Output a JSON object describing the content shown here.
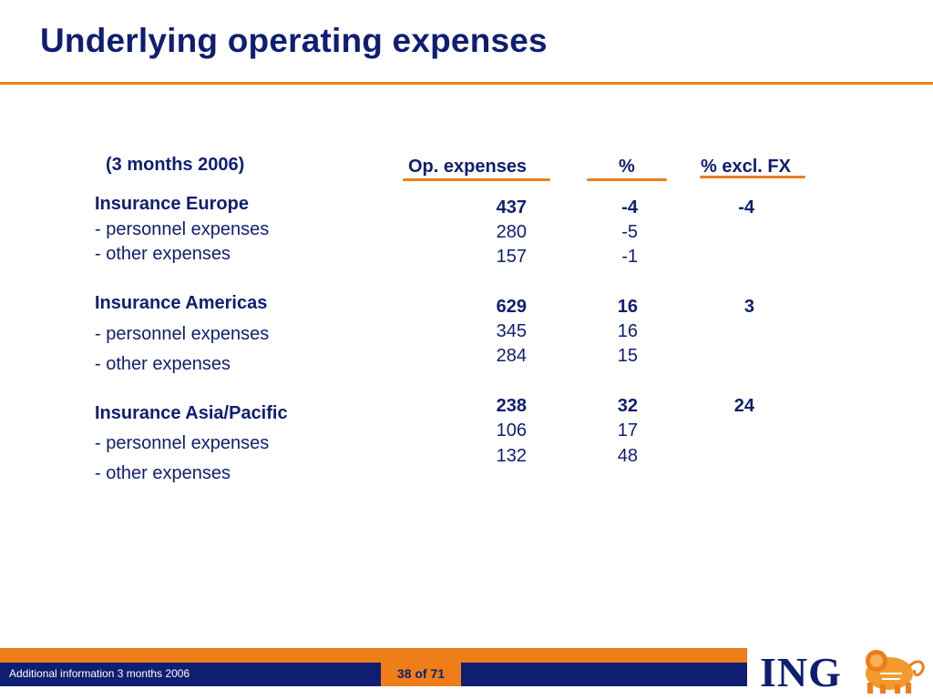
{
  "title": "Underlying operating expenses",
  "period_label": "(3 months 2006)",
  "columns": [
    "Op. expenses",
    "%",
    "% excl. FX"
  ],
  "sections": [
    {
      "name": "Insurance Europe",
      "total": [
        "437",
        "-4",
        "-4"
      ],
      "rows": [
        {
          "label": "-  personnel expenses",
          "values": [
            "280",
            "-5",
            ""
          ]
        },
        {
          "label": "-  other expenses",
          "values": [
            "157",
            "-1",
            ""
          ]
        }
      ]
    },
    {
      "name": "Insurance Americas",
      "total": [
        "629",
        "16",
        "3"
      ],
      "rows": [
        {
          "label": "-  personnel expenses",
          "values": [
            "345",
            "16",
            ""
          ]
        },
        {
          "label": "-  other expenses",
          "values": [
            "284",
            "15",
            ""
          ]
        }
      ]
    },
    {
      "name": "Insurance Asia/Pacific",
      "total": [
        "238",
        "32",
        "24"
      ],
      "rows": [
        {
          "label": "-  personnel expenses",
          "values": [
            "106",
            "17",
            ""
          ]
        },
        {
          "label": "-  other expenses",
          "values": [
            "132",
            "48",
            ""
          ]
        }
      ]
    }
  ],
  "footer": {
    "left_text": "Additional information 3 months 2006",
    "page": "38 of 71",
    "logo_text": "ING"
  },
  "colors": {
    "navy": "#0f1e72",
    "orange": "#ee7d1a"
  },
  "icons": {
    "logo": "ing-lion-icon"
  }
}
